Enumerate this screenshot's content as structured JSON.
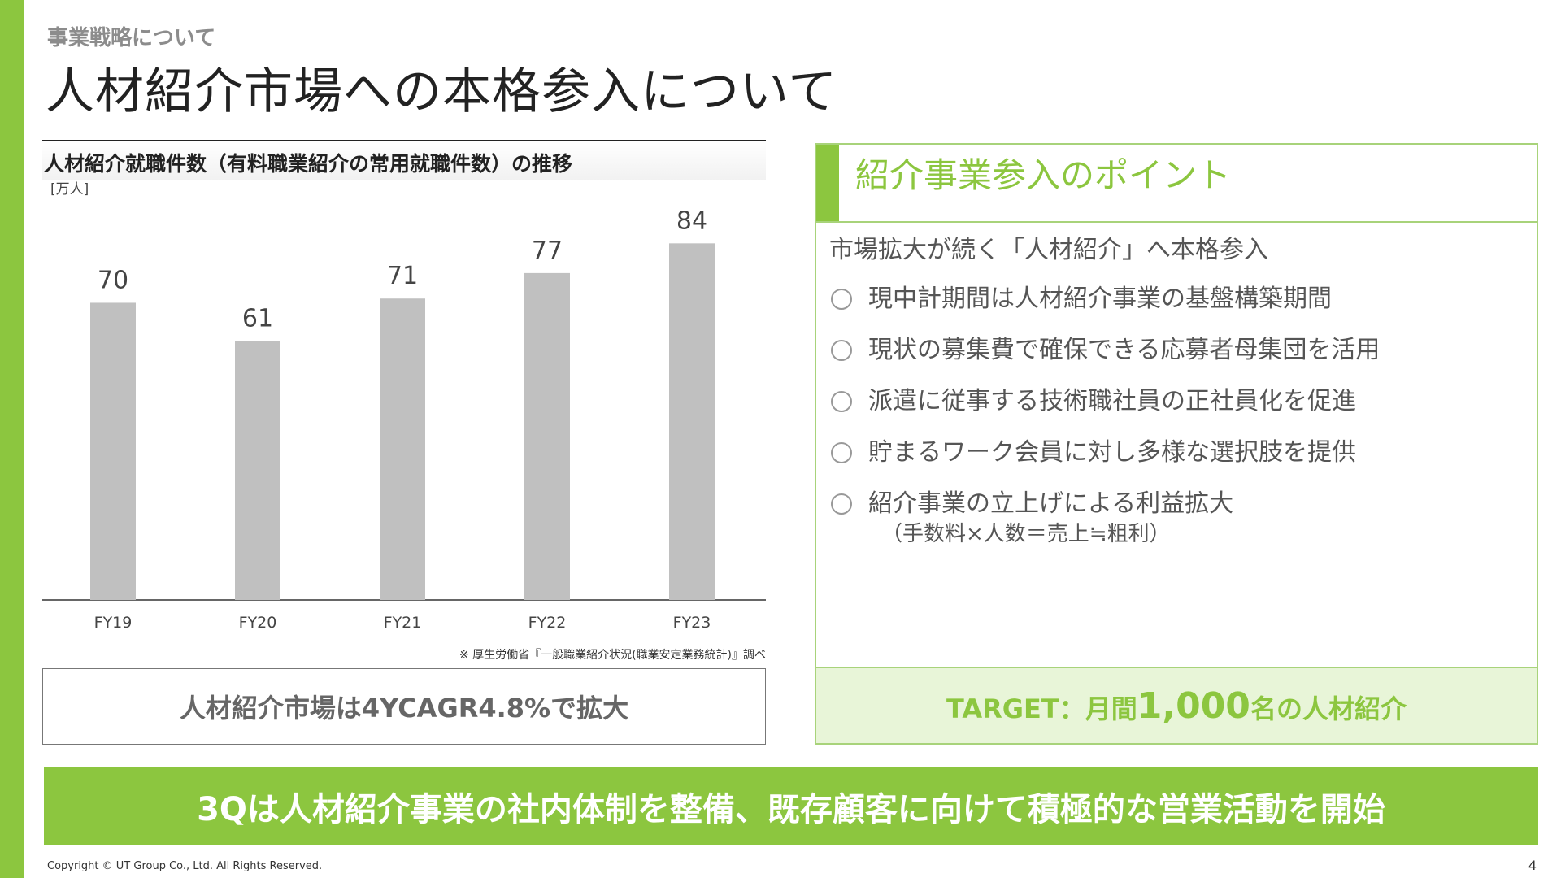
{
  "header": {
    "section_label": "事業戦略について",
    "title": "人材紹介市場への本格参入について"
  },
  "chart_panel": {
    "heading": "人材紹介就職件数（有料職業紹介の常用就職件数）の推移",
    "unit": "[万人]",
    "source": "※ 厚生労働省『一般職業紹介状況(職業安定業務統計)』調べ",
    "summary": "人材紹介市場は4YCAGR4.8%で拡大"
  },
  "chart_data": {
    "type": "bar",
    "categories": [
      "FY19",
      "FY20",
      "FY21",
      "FY22",
      "FY23"
    ],
    "values": [
      70,
      61,
      71,
      77,
      84
    ],
    "ylabel": "[万人]",
    "ylim": [
      0,
      90
    ],
    "bar_color": "#c0c0c0",
    "grid": false,
    "legend": "none"
  },
  "points_panel": {
    "header": "紹介事業参入のポイント",
    "lead": "市場拡大が続く「人材紹介」へ本格参入",
    "items": [
      {
        "text": "現中計期間は人材紹介事業の基盤構築期間",
        "sub": ""
      },
      {
        "text": "現状の募集費で確保できる応募者母集団を活用",
        "sub": ""
      },
      {
        "text": "派遣に従事する技術職社員の正社員化を促進",
        "sub": ""
      },
      {
        "text": "貯まるワーク会員に対し多様な選択肢を提供",
        "sub": ""
      },
      {
        "text": "紹介事業の立上げによる利益拡大",
        "sub": "（手数料×人数＝売上≒粗利）"
      }
    ],
    "target": {
      "prefix": "TARGET：月間",
      "number": "1,000",
      "suffix": "名の人材紹介"
    }
  },
  "banner": "3Qは人材紹介事業の社内体制を整備、既存顧客に向けて積極的な営業活動を開始",
  "footer": {
    "copyright": "Copyright © UT Group Co., Ltd. All Rights Reserved.",
    "page_number": "4"
  },
  "colors": {
    "accent": "#8cc63f",
    "accent_light": "#e8f5d8",
    "bar": "#c0c0c0"
  }
}
